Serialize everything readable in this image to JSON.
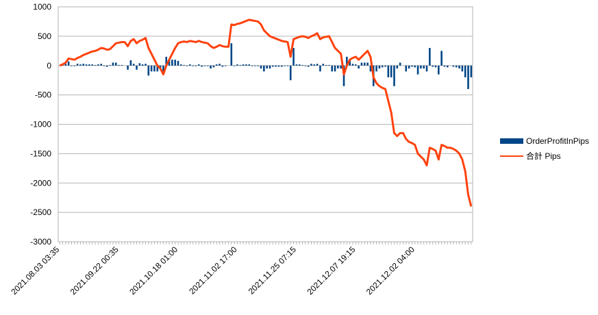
{
  "chart_data": {
    "type": "bar-line",
    "categories": [
      "2021.08.03 03:35",
      null,
      null,
      null,
      null,
      null,
      null,
      null,
      null,
      null,
      null,
      null,
      null,
      null,
      null,
      null,
      null,
      null,
      null,
      null,
      "2021.09.22 00:35",
      null,
      null,
      null,
      null,
      null,
      null,
      null,
      null,
      null,
      null,
      null,
      null,
      null,
      null,
      null,
      null,
      null,
      null,
      null,
      "2021.10.18 01:00",
      null,
      null,
      null,
      null,
      null,
      null,
      null,
      null,
      null,
      null,
      null,
      null,
      null,
      null,
      null,
      null,
      null,
      null,
      null,
      "2021.11.02 17:00",
      null,
      null,
      null,
      null,
      null,
      null,
      null,
      null,
      null,
      null,
      null,
      null,
      null,
      null,
      null,
      null,
      null,
      null,
      null,
      "2021.11.25 07:15",
      null,
      null,
      null,
      null,
      null,
      null,
      null,
      null,
      null,
      null,
      null,
      null,
      null,
      null,
      null,
      null,
      null,
      null,
      null,
      "2021.12.07 19:15",
      null,
      null,
      null,
      null,
      null,
      null,
      null,
      null,
      null,
      null,
      null,
      null,
      null,
      null,
      null,
      null,
      null,
      null,
      null,
      "2021.12.02 04:00",
      null,
      null,
      null,
      null,
      null,
      null,
      null,
      null,
      null,
      null,
      null,
      null,
      null,
      null,
      null,
      null,
      null,
      null,
      null
    ],
    "series": [
      {
        "name": "OrderProfitInPips",
        "kind": "bar",
        "color": "#004586",
        "values": [
          0,
          20,
          30,
          70,
          -10,
          -10,
          30,
          20,
          30,
          20,
          20,
          20,
          10,
          20,
          30,
          -10,
          -20,
          10,
          50,
          50,
          10,
          10,
          0,
          -70,
          90,
          30,
          -70,
          40,
          20,
          30,
          -170,
          -100,
          -100,
          -100,
          -50,
          -100,
          150,
          100,
          100,
          100,
          80,
          20,
          10,
          -10,
          20,
          -10,
          -10,
          20,
          -20,
          -10,
          -10,
          -50,
          -30,
          20,
          30,
          -20,
          -10,
          0,
          380,
          -10,
          20,
          10,
          20,
          20,
          20,
          -10,
          -10,
          -10,
          -50,
          -100,
          -50,
          -50,
          -20,
          -20,
          -20,
          -20,
          -10,
          -10,
          -250,
          300,
          20,
          20,
          10,
          -10,
          -20,
          30,
          20,
          30,
          -100,
          30,
          10,
          10,
          -100,
          -100,
          -50,
          -50,
          -350,
          150,
          100,
          30,
          20,
          -50,
          50,
          50,
          50,
          -100,
          -350,
          -100,
          -50,
          -30,
          -20,
          -200,
          -200,
          -350,
          -50,
          50,
          0,
          -100,
          -50,
          -20,
          -30,
          -150,
          -50,
          -50,
          -100,
          300,
          -20,
          -30,
          -150,
          250,
          -20,
          -30,
          0,
          -20,
          -30,
          -50,
          -100,
          -200,
          -400,
          -200
        ]
      },
      {
        "name": "合計 Pips",
        "kind": "line",
        "color": "#ff420e",
        "values": [
          0,
          20,
          50,
          120,
          110,
          100,
          130,
          150,
          180,
          200,
          220,
          240,
          250,
          270,
          300,
          290,
          270,
          280,
          330,
          380,
          390,
          400,
          400,
          330,
          420,
          450,
          380,
          420,
          440,
          470,
          300,
          200,
          100,
          0,
          -50,
          -150,
          0,
          100,
          200,
          300,
          380,
          400,
          410,
          400,
          420,
          410,
          400,
          420,
          400,
          390,
          380,
          330,
          300,
          320,
          350,
          330,
          320,
          320,
          700,
          690,
          710,
          720,
          740,
          760,
          780,
          770,
          760,
          750,
          700,
          600,
          550,
          500,
          480,
          460,
          440,
          420,
          410,
          400,
          150,
          450,
          470,
          490,
          500,
          490,
          470,
          500,
          520,
          550,
          450,
          480,
          490,
          500,
          400,
          300,
          250,
          200,
          -150,
          0,
          100,
          130,
          150,
          100,
          150,
          200,
          250,
          150,
          -200,
          -300,
          -350,
          -380,
          -400,
          -600,
          -800,
          -1150,
          -1200,
          -1150,
          -1150,
          -1250,
          -1300,
          -1320,
          -1350,
          -1500,
          -1550,
          -1600,
          -1700,
          -1400,
          -1420,
          -1450,
          -1600,
          -1350,
          -1370,
          -1400,
          -1400,
          -1420,
          -1450,
          -1500,
          -1600,
          -1800,
          -2200,
          -2400
        ]
      }
    ],
    "ylim": [
      -3000,
      1000
    ],
    "yticks": [
      -3000,
      -2500,
      -2000,
      -1500,
      -1000,
      -500,
      0,
      500,
      1000
    ],
    "grid": true,
    "legend": "right"
  }
}
